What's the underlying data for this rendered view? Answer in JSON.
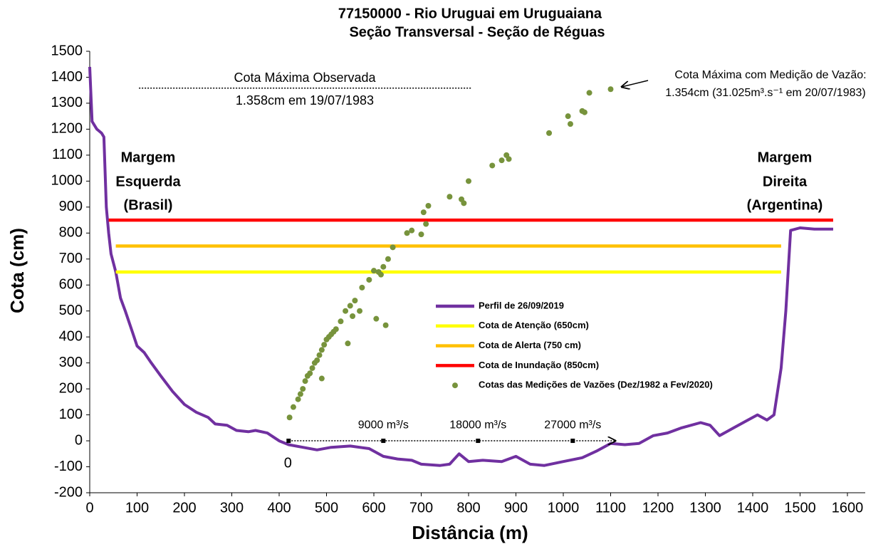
{
  "chart_data": {
    "type": "line",
    "title": [
      "77150000 - Rio Uruguai em Uruguaiana",
      "Seção Transversal - Seção de Réguas"
    ],
    "xlabel": "Distância (m)",
    "ylabel": "Cota (cm)",
    "xlim": [
      0,
      1600
    ],
    "ylim": [
      -200,
      1500
    ],
    "xticks": [
      0,
      100,
      200,
      300,
      400,
      500,
      600,
      700,
      800,
      900,
      1000,
      1100,
      1200,
      1300,
      1400,
      1500,
      1600
    ],
    "yticks": [
      -200,
      -100,
      0,
      100,
      200,
      300,
      400,
      500,
      600,
      700,
      800,
      900,
      1000,
      1100,
      1200,
      1300,
      1400,
      1500
    ],
    "grid": false,
    "series": [
      {
        "name": "Perfil de 26/09/2019",
        "color": "#7030a0",
        "style": "line",
        "x": [
          0,
          5,
          15,
          25,
          30,
          35,
          40,
          45,
          55,
          65,
          75,
          90,
          100,
          115,
          130,
          150,
          175,
          200,
          225,
          250,
          265,
          290,
          310,
          335,
          350,
          375,
          400,
          420,
          450,
          480,
          510,
          550,
          590,
          620,
          650,
          680,
          700,
          740,
          760,
          780,
          800,
          830,
          870,
          900,
          930,
          960,
          1000,
          1040,
          1070,
          1100,
          1130,
          1160,
          1190,
          1220,
          1250,
          1290,
          1310,
          1330,
          1360,
          1390,
          1410,
          1430,
          1445,
          1460,
          1470,
          1480,
          1500,
          1530,
          1570
        ],
        "values": [
          1440,
          1230,
          1200,
          1185,
          1170,
          900,
          800,
          720,
          650,
          550,
          500,
          420,
          365,
          340,
          300,
          250,
          190,
          140,
          110,
          90,
          65,
          60,
          40,
          35,
          40,
          30,
          0,
          -15,
          -25,
          -35,
          -25,
          -20,
          -30,
          -60,
          -70,
          -75,
          -90,
          -95,
          -90,
          -50,
          -80,
          -75,
          -80,
          -60,
          -90,
          -95,
          -80,
          -65,
          -40,
          -10,
          -15,
          -10,
          20,
          30,
          50,
          70,
          60,
          20,
          50,
          80,
          100,
          80,
          100,
          280,
          500,
          810,
          820,
          815,
          815
        ]
      },
      {
        "name": "Cota de Atenção (650cm)",
        "color": "#ffff00",
        "style": "line",
        "x": [
          55,
          1460
        ],
        "values": [
          650,
          650
        ]
      },
      {
        "name": "Cota de Alerta (750 cm)",
        "color": "#ffc000",
        "style": "line",
        "x": [
          55,
          1460
        ],
        "values": [
          750,
          750
        ]
      },
      {
        "name": "Cota de Inundação (850cm)",
        "color": "#ff0000",
        "style": "line",
        "x": [
          40,
          1570
        ],
        "values": [
          850,
          850
        ]
      },
      {
        "name": "Cotas das Medições de Vazões (Dez/1982 a Fev/2020)",
        "color": "#77933c",
        "style": "scatter",
        "x": [
          422,
          430,
          440,
          445,
          450,
          455,
          460,
          465,
          470,
          475,
          480,
          485,
          490,
          495,
          500,
          505,
          510,
          515,
          520,
          490,
          530,
          540,
          545,
          550,
          555,
          560,
          570,
          575,
          590,
          600,
          610,
          605,
          615,
          620,
          625,
          630,
          640,
          670,
          680,
          700,
          705,
          715,
          710,
          760,
          785,
          790,
          800,
          850,
          870,
          880,
          885,
          970,
          1010,
          1015,
          1040,
          1045,
          1055,
          1100
        ],
        "values": [
          90,
          130,
          160,
          180,
          200,
          230,
          250,
          260,
          280,
          300,
          310,
          330,
          350,
          370,
          390,
          400,
          410,
          420,
          430,
          240,
          460,
          500,
          375,
          520,
          480,
          540,
          500,
          590,
          620,
          655,
          650,
          470,
          640,
          670,
          445,
          700,
          745,
          800,
          810,
          795,
          880,
          905,
          835,
          940,
          930,
          915,
          1000,
          1060,
          1080,
          1100,
          1085,
          1185,
          1250,
          1220,
          1270,
          1265,
          1340,
          1354
        ]
      }
    ],
    "max_observed": {
      "label": "Cota Máxima Observada",
      "text": "1.358cm em 19/07/1983",
      "value": 1358,
      "x": [
        104,
        806
      ]
    },
    "max_measured": [
      "Cota Máxima com Medição de Vazão:",
      "1.354cm (31.025m³.s⁻¹ em 20/07/1983)"
    ],
    "left_bank": [
      "Margem",
      "Esquerda",
      "(Brasil)"
    ],
    "right_bank": [
      "Margem",
      "Direita",
      "(Argentina)"
    ],
    "discharge_scale": {
      "labels": [
        "0",
        "9000 m³/s",
        "18000 m³/s",
        "27000 m³/s"
      ],
      "x": [
        420,
        620,
        820,
        1020
      ],
      "end": 1110,
      "y": 0
    }
  }
}
